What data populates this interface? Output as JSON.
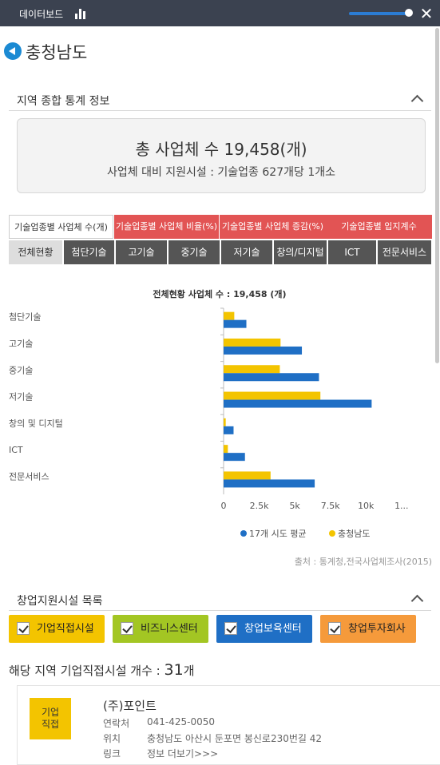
{
  "topbar": {
    "title": "데이터보드"
  },
  "region": {
    "name": "충청남도"
  },
  "section1": {
    "title": "지역 종합 통계 정보"
  },
  "summary": {
    "total": "총 사업체 수 19,458(개)",
    "sub": "사업체 대비 지원시설 : 기술업종 627개당 1개소"
  },
  "tabs_primary": [
    "기술업종별 사업체 수(개)",
    "기술업종별 사업체 비율(%)",
    "기술업종별 사업체 증감(%)",
    "기술업종별 입지계수"
  ],
  "tabs_secondary": [
    "전체현황",
    "첨단기술",
    "고기술",
    "중기술",
    "저기술",
    "창의/디지털",
    "ICT",
    "전문서비스"
  ],
  "chart_data": {
    "type": "bar",
    "orientation": "horizontal",
    "title": "전체현황 사업체 수 : 19,458 (개)",
    "categories": [
      "첨단기술",
      "고기술",
      "중기술",
      "저기술",
      "창의 및 디지털",
      "ICT",
      "전문서비스"
    ],
    "series": [
      {
        "name": "충청남도",
        "color": "#f3c400",
        "values": [
          750,
          4000,
          3950,
          6800,
          150,
          300,
          3300
        ]
      },
      {
        "name": "17개 시도 평균",
        "color": "#1f6fc5",
        "values": [
          1600,
          5500,
          6700,
          10400,
          700,
          1500,
          6400
        ]
      }
    ],
    "xlim": [
      0,
      11500
    ],
    "xticks": [
      "0",
      "2.5k",
      "5k",
      "7.5k",
      "10k",
      "1..."
    ],
    "legend_position": "bottom",
    "grid": false
  },
  "legend": {
    "avg": "17개 시도 평균",
    "region": "충청남도"
  },
  "source": "출처 : 통계청,전국사업체조사(2015)",
  "section2": {
    "title": "창업지원시설 목록"
  },
  "facility_filters": [
    {
      "label": "기업직접시설",
      "color": "#f3c400"
    },
    {
      "label": "비즈니스센터",
      "color": "#a3c623"
    },
    {
      "label": "창업보육센터",
      "color": "#1f6fc5"
    },
    {
      "label": "창업투자회사",
      "color": "#f59a3b"
    }
  ],
  "count": {
    "prefix": "해당 지역 기업직접시설 개수 : ",
    "num": "31",
    "suffix": "개"
  },
  "facility": {
    "badge": "기업\n직접",
    "name": "(주)포인트",
    "contact_label": "연락처",
    "contact": "041-425-0050",
    "location_label": "위치",
    "location": "충청남도 아산시 둔포면 봉신로230번길 42",
    "link_label": "링크",
    "link": "정보 더보기>>>"
  }
}
